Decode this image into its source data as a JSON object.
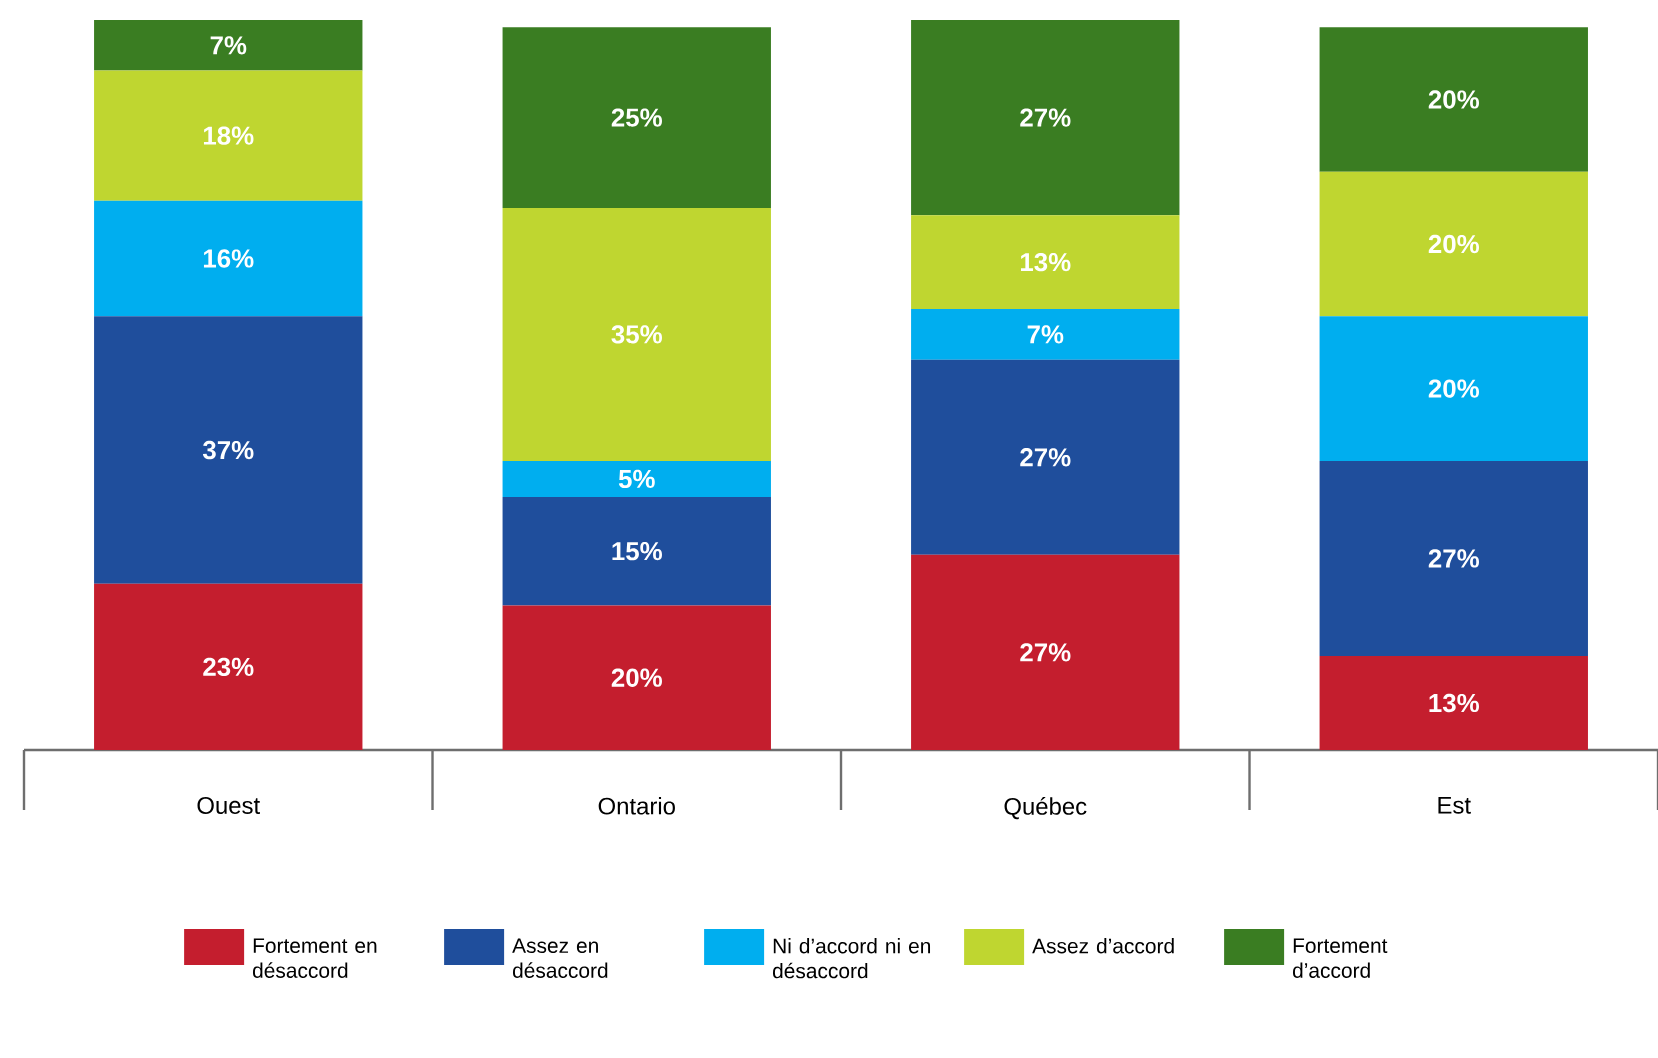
{
  "chart_data": {
    "type": "bar",
    "stacked": true,
    "categories": [
      "Ouest",
      "Ontario",
      "Québec",
      "Est"
    ],
    "series": [
      {
        "name": "Fortement en désaccord",
        "color": "#c41e2e",
        "values": [
          23,
          20,
          27,
          13
        ],
        "value_labels": [
          "23%",
          "20%",
          "27%",
          "13%"
        ]
      },
      {
        "name": "Assez en désaccord",
        "color": "#1f4e9c",
        "values": [
          37,
          15,
          27,
          27
        ],
        "value_labels": [
          "37%",
          "15%",
          "27%",
          "27%"
        ]
      },
      {
        "name": "Ni d’accord ni en désaccord",
        "color": "#00aeef",
        "values": [
          16,
          5,
          7,
          20
        ],
        "value_labels": [
          "16%",
          "5%",
          "7%",
          "20%"
        ]
      },
      {
        "name": "Assez d’accord",
        "color": "#bfd630",
        "values": [
          18,
          35,
          13,
          20
        ],
        "value_labels": [
          "18%",
          "35%",
          "13%",
          "20%"
        ]
      },
      {
        "name": "Fortement d’accord",
        "color": "#3a7d22",
        "values": [
          7,
          25,
          27,
          20
        ],
        "value_labels": [
          "7%",
          "25%",
          "27%",
          "20%"
        ]
      }
    ],
    "legend": "bottom"
  }
}
